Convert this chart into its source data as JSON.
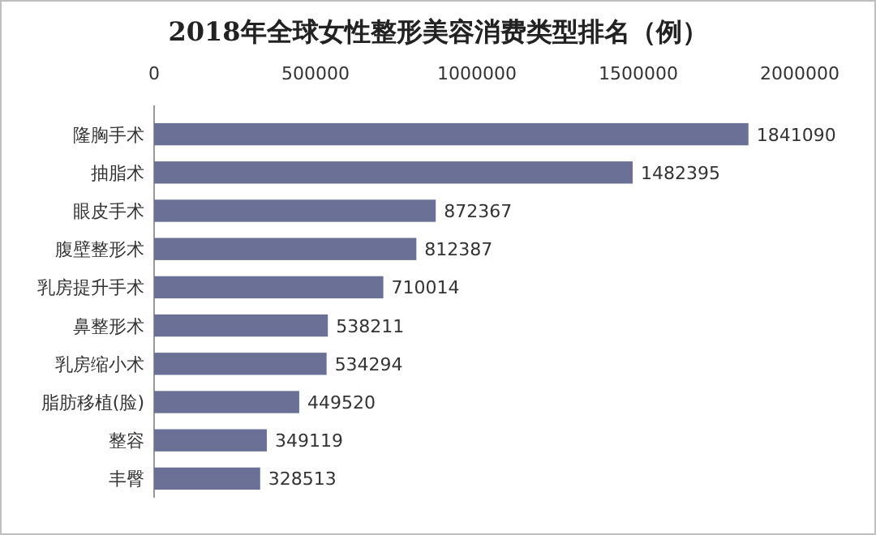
{
  "chart_data": {
    "type": "bar",
    "orientation": "horizontal",
    "title": "2018年全球女性整形美容消费类型排名（例）",
    "categories": [
      "隆胸手术",
      "抽脂术",
      "眼皮手术",
      "腹壁整形术",
      "乳房提升手术",
      "鼻整形术",
      "乳房缩小术",
      "脂肪移植(脸)",
      "整容",
      "丰臀"
    ],
    "values": [
      1841090,
      1482395,
      872367,
      812387,
      710014,
      538211,
      534294,
      449520,
      349119,
      328513
    ],
    "color": "#6b7196",
    "xlim": [
      0,
      2000000
    ],
    "xticks": [
      0,
      500000,
      1000000,
      1500000,
      2000000
    ],
    "data_labels": true
  }
}
